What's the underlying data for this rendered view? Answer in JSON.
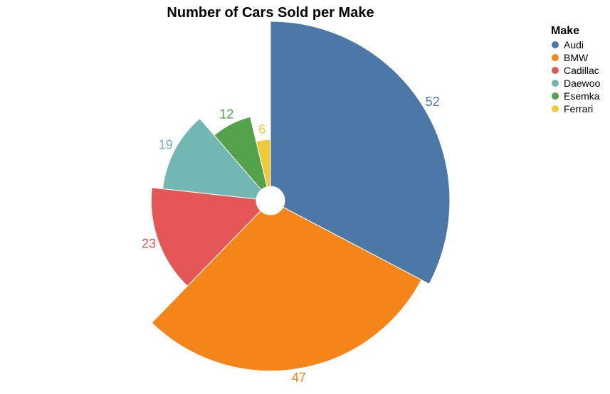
{
  "chart_data": {
    "type": "pie",
    "variant": "radial",
    "title": "Number of Cars Sold per Make",
    "categories": [
      "Audi",
      "BMW",
      "Cadillac",
      "Daewoo",
      "Esemka",
      "Ferrari"
    ],
    "values": [
      52,
      47,
      23,
      19,
      12,
      6
    ],
    "colors": [
      "#4c78a8",
      "#f58518",
      "#e45756",
      "#72b7b2",
      "#54a24b",
      "#eeca3b"
    ],
    "legend": {
      "title": "Make",
      "position": "top-right"
    },
    "data_labels": [
      "52",
      "47",
      "23",
      "19",
      "12",
      "6"
    ]
  }
}
